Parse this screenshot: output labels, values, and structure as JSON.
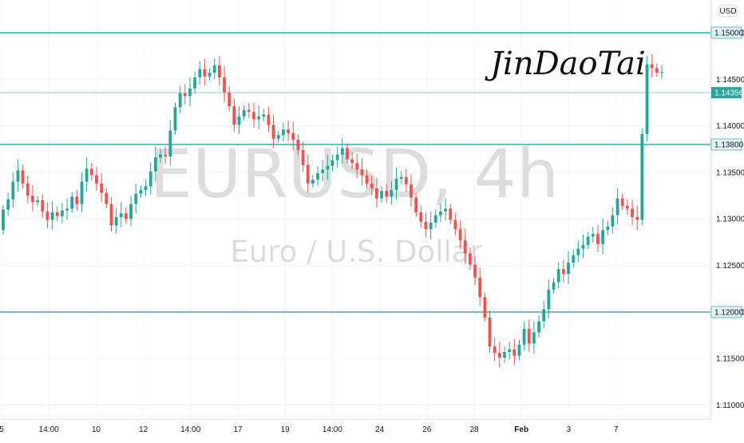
{
  "currency_label": "USD",
  "watermark": {
    "symbol": "EURUSD, 4h",
    "name": "Euro / U.S. Dollar"
  },
  "signature": "JinDaoTai",
  "colors": {
    "up": "#26a69a",
    "down": "#ef5350",
    "level_line": "#5fc0c4",
    "grid": "#f0f3fa"
  },
  "chart_data": {
    "type": "candlestick",
    "y_ticks": [
      "1.11000",
      "1.11500",
      "1.12000",
      "1.12500",
      "1.13000",
      "1.13500",
      "1.14000",
      "1.14500",
      "1.15000"
    ],
    "x_ticks": [
      "5",
      "14:00",
      "10",
      "12",
      "14:00",
      "17",
      "19",
      "14:00",
      "24",
      "26",
      "28",
      "Feb",
      "3",
      "7"
    ],
    "ylim": [
      1.1085,
      1.153
    ],
    "levels": [
      {
        "price": 1.15,
        "label": "1.15000"
      },
      {
        "price": 1.138,
        "label": "1.13800"
      },
      {
        "price": 1.12,
        "label": "1.12000"
      }
    ],
    "last_price": {
      "price": 1.14356,
      "label": "1.14356"
    },
    "ohlc_start": 1.1288,
    "ohlc_changes": [
      0.0022,
      0.0011,
      0.0019,
      0.0012,
      -0.0014,
      -0.0013,
      -0.0007,
      0.0002,
      -0.0012,
      -0.0009,
      0.0008,
      -0.0004,
      0.0006,
      0.0002,
      0.0013,
      -0.0008,
      0.0024,
      0.0014,
      -0.0007,
      -0.0009,
      -0.001,
      -0.0012,
      -0.0023,
      0.0009,
      0.0004,
      -0.0006,
      0.0016,
      0.0011,
      0.0004,
      0.0004,
      0.0016,
      0.0015,
      0.0003,
      -0.0002,
      0.0028,
      0.0025,
      0.0015,
      -0.0003,
      0.0008,
      0.0012,
      0.0009,
      -0.0008,
      0.0004,
      0.0008,
      -0.0013,
      -0.0016,
      -0.0015,
      -0.002,
      0.0009,
      0.0007,
      -0.0002,
      -0.0008,
      0.0003,
      0.0002,
      -0.0011,
      -0.0015,
      0.0004,
      0.0006,
      -0.0004,
      -0.0007,
      -0.0011,
      -0.0016,
      -0.002,
      0.0004,
      0.0007,
      0.0004,
      0.0004,
      0.0006,
      0.0006,
      0.0007,
      -0.0012,
      -0.0004,
      -0.0007,
      -0.0006,
      -0.0009,
      -0.0005,
      -0.0011,
      0.0008,
      -0.0006,
      0.0007,
      0.0012,
      0.0002,
      -0.0008,
      -0.0014,
      -0.0016,
      -0.001,
      -0.0008,
      0.0007,
      0.0008,
      0.0004,
      0.0003,
      -0.0012,
      -0.001,
      -0.0012,
      -0.0014,
      -0.0012,
      -0.0014,
      -0.0021,
      -0.0022,
      -0.0031,
      -0.0007,
      -0.0005,
      0.0006,
      0.0003,
      -0.0007,
      0.0012,
      0.0017,
      -0.0016,
      0.0012,
      0.0012,
      0.0013,
      0.0021,
      0.0008,
      0.0014,
      -0.0005,
      0.0012,
      0.0008,
      0.0007,
      0.0004,
      0.0009,
      0.0003,
      -0.0011,
      0.0015,
      0.0004,
      0.0012,
      0.0018,
      -0.0008,
      -0.0003,
      -0.0009,
      -0.0003,
      0.0092,
      0.0075,
      -0.0004,
      -0.0005,
      0.0001
    ]
  }
}
